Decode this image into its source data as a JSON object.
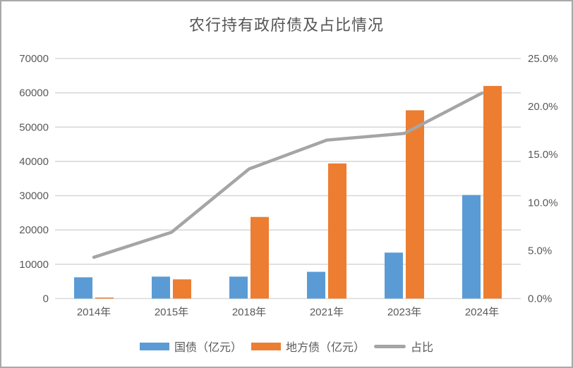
{
  "chart_data": {
    "type": "combo-bar-line",
    "title": "农行持有政府债及占比情况",
    "categories": [
      "2014年",
      "2015年",
      "2018年",
      "2021年",
      "2023年",
      "2024年"
    ],
    "bar_series": [
      {
        "name": "国债（亿元）",
        "color": "#5B9BD5",
        "axis": "left",
        "values": [
          6200,
          6400,
          6400,
          7800,
          13400,
          30200
        ]
      },
      {
        "name": "地方债（亿元）",
        "color": "#ED7D31",
        "axis": "left",
        "values": [
          300,
          5600,
          23800,
          39400,
          54900,
          62000
        ]
      }
    ],
    "line_series": {
      "name": "占比",
      "color": "#A5A5A5",
      "axis": "right",
      "values_percent": [
        4.3,
        6.9,
        13.5,
        16.5,
        17.2,
        21.4
      ]
    },
    "left_axis": {
      "min": 0,
      "max": 70000,
      "tick_step": 10000,
      "ticks": [
        "0",
        "10000",
        "20000",
        "30000",
        "40000",
        "50000",
        "60000",
        "70000"
      ]
    },
    "right_axis": {
      "min": 0,
      "max": 25,
      "tick_step": 5,
      "ticks": [
        "0.0%",
        "5.0%",
        "10.0%",
        "15.0%",
        "20.0%",
        "25.0%"
      ]
    },
    "grid": true,
    "legend_position": "bottom",
    "colors": {
      "grid_line": "#D9D9D9",
      "axis_text": "#595959",
      "frame_border": "#A9A9A9",
      "background": "#FFFFFF"
    }
  }
}
